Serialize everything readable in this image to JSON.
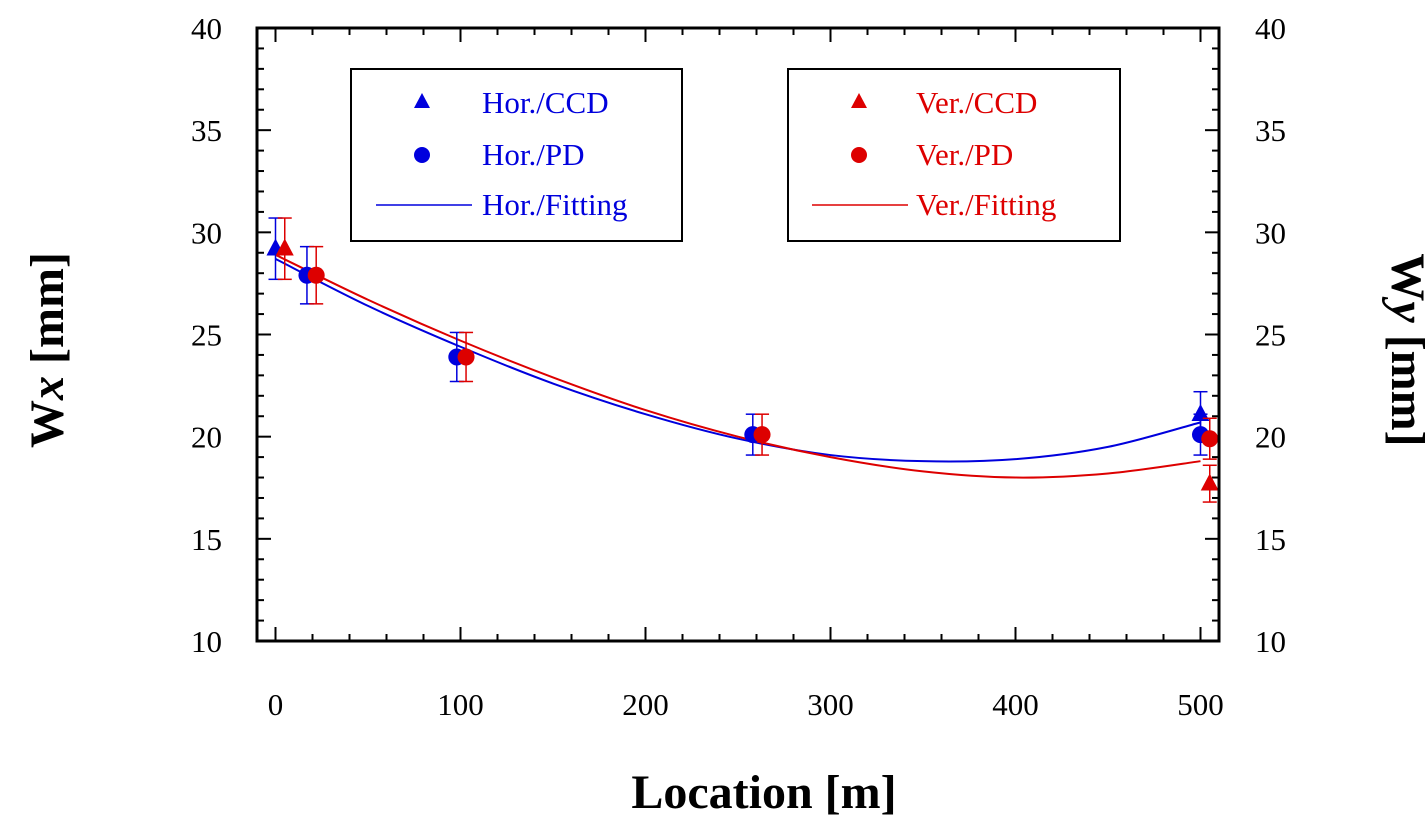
{
  "chart_data": {
    "type": "scatter",
    "title": "",
    "xlabel": "Location [m]",
    "ylabel_left_main": "W",
    "ylabel_left_sub": "x",
    "ylabel_left_unit": " [mm]",
    "ylabel_right_main": "W",
    "ylabel_right_sub": "y",
    "ylabel_right_unit": " [mm]",
    "xlim": [
      -10,
      510
    ],
    "ylim": [
      10,
      40
    ],
    "x_ticks": [
      0,
      100,
      200,
      300,
      400,
      500
    ],
    "x_tick_labels": [
      "0",
      "100",
      "200",
      "300",
      "400",
      "500"
    ],
    "y_ticks": [
      10,
      15,
      20,
      25,
      30,
      35,
      40
    ],
    "y_tick_labels": [
      "10",
      "15",
      "20",
      "25",
      "30",
      "35",
      "40"
    ],
    "grid": false,
    "colors": {
      "horizontal": "#0000dd",
      "vertical": "#dd0000",
      "axis": "#000000"
    },
    "series": [
      {
        "name": "Hor./CCD",
        "kind": "marker",
        "marker": "triangle",
        "color": "#0000dd",
        "points": [
          {
            "x": 0,
            "y": 29.2,
            "err": 1.5
          },
          {
            "x": 500,
            "y": 21.1,
            "err": 1.1
          }
        ]
      },
      {
        "name": "Hor./PD",
        "kind": "marker",
        "marker": "circle",
        "color": "#0000dd",
        "points": [
          {
            "x": 17,
            "y": 27.9,
            "err": 1.4
          },
          {
            "x": 98,
            "y": 23.9,
            "err": 1.2
          },
          {
            "x": 258,
            "y": 20.1,
            "err": 1.0
          },
          {
            "x": 500,
            "y": 20.1,
            "err": 1.0
          }
        ]
      },
      {
        "name": "Hor./Fitting",
        "kind": "line",
        "color": "#0000dd",
        "x": [
          0,
          50,
          100,
          150,
          200,
          250,
          300,
          350,
          400,
          450,
          500
        ],
        "y": [
          28.7,
          26.4,
          24.4,
          22.6,
          21.1,
          19.9,
          19.1,
          18.8,
          18.9,
          19.5,
          20.7
        ]
      },
      {
        "name": "Ver./CCD",
        "kind": "marker",
        "marker": "triangle",
        "color": "#dd0000",
        "points": [
          {
            "x": 5,
            "y": 29.2,
            "err": 1.5
          },
          {
            "x": 505,
            "y": 17.7,
            "err": 0.9
          }
        ]
      },
      {
        "name": "Ver./PD",
        "kind": "marker",
        "marker": "circle",
        "color": "#dd0000",
        "points": [
          {
            "x": 22,
            "y": 27.9,
            "err": 1.4
          },
          {
            "x": 103,
            "y": 23.9,
            "err": 1.2
          },
          {
            "x": 263,
            "y": 20.1,
            "err": 1.0
          },
          {
            "x": 505,
            "y": 19.9,
            "err": 1.0
          }
        ]
      },
      {
        "name": "Ver./Fitting",
        "kind": "line",
        "color": "#dd0000",
        "x": [
          0,
          50,
          100,
          150,
          200,
          250,
          300,
          350,
          400,
          450,
          500
        ],
        "y": [
          28.9,
          26.7,
          24.7,
          22.9,
          21.3,
          20.0,
          19.0,
          18.3,
          18.0,
          18.2,
          18.8
        ]
      }
    ],
    "legends": [
      {
        "placement": "top-left",
        "entries": [
          "Hor./CCD",
          "Hor./PD",
          "Hor./Fitting"
        ]
      },
      {
        "placement": "top-right",
        "entries": [
          "Ver./CCD",
          "Ver./PD",
          "Ver./Fitting"
        ]
      }
    ]
  }
}
